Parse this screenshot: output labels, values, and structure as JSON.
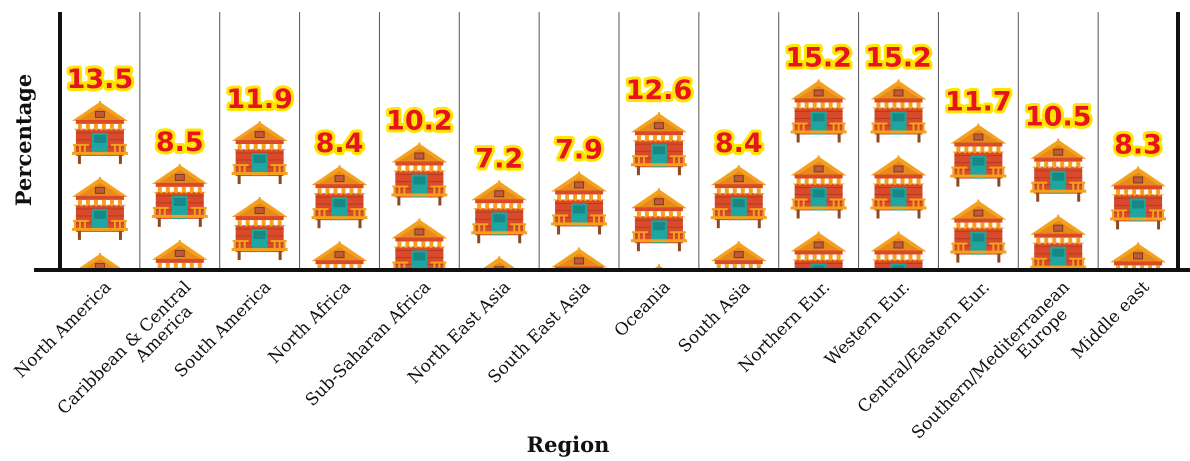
{
  "chart_data": {
    "type": "bar",
    "xlabel": "Region",
    "ylabel": "Percentage",
    "categories": [
      "North America",
      "Caribbean & Central America",
      "South America",
      "North Africa",
      "Sub-Saharan Africa",
      "North East Asia",
      "South East Asia",
      "Oceania",
      "South Asia",
      "Northern Eur.",
      "Western Eur.",
      "Central/Eastern Eur.",
      "Southern/Mediterranean Europe",
      "Middle east"
    ],
    "values": [
      13.5,
      8.5,
      11.9,
      8.4,
      10.2,
      7.2,
      7.9,
      12.6,
      8.4,
      15.2,
      15.2,
      11.7,
      10.5,
      8.3
    ],
    "value_labels": [
      "13.5",
      "8.5",
      "11.9",
      "8.4",
      "10.2",
      "7.2",
      "7.9",
      "12.6",
      "8.4",
      "15.2",
      "15.2",
      "11.7",
      "10.5",
      "8.3"
    ],
    "ylim": [
      0,
      16
    ],
    "grid": "vertical separators between categories",
    "legend": "none",
    "mark": "pictograph stacked house icons",
    "colors": {
      "house_body": "#d94a2a",
      "roof": "#f4a11d",
      "door": "#1fa6a0",
      "awning_stripe": "#ffffff",
      "value_text": "#e8141c",
      "value_outline": "#ffe600",
      "axis": "#111111",
      "separator": "#555555"
    }
  }
}
